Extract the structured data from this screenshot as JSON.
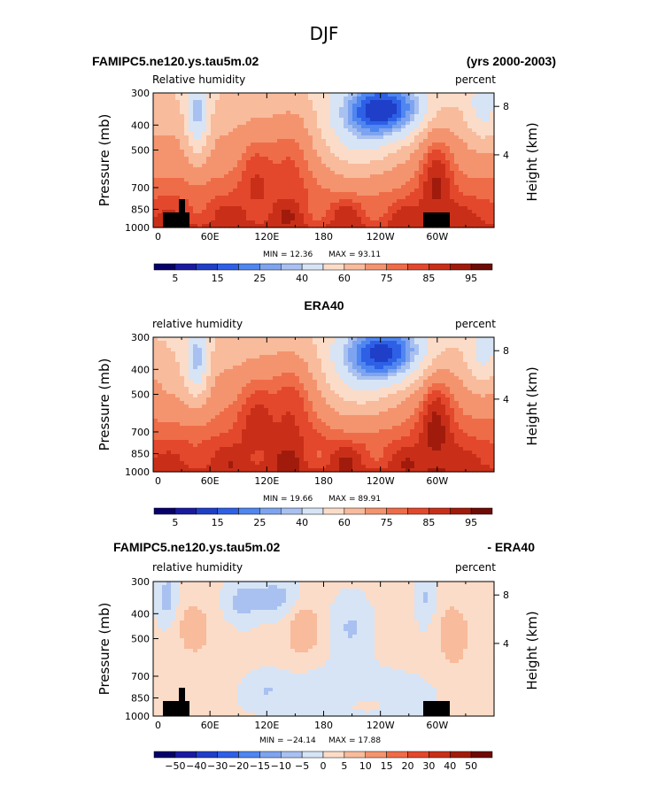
{
  "title": "DJF",
  "panels": [
    {
      "left_title": "FAMIPC5.ne120.ys.tau5m.02",
      "right_title": "(yrs 2000-2003)",
      "variable_label": "Relative humidity",
      "units_label": "percent",
      "ylabel": "Pressure (mb)",
      "ylabel_right": "Height (km)",
      "min_label": "MIN =   12.36",
      "max_label": "MAX =   93.11",
      "levels": [
        5,
        15,
        25,
        40,
        60,
        75,
        85,
        95
      ]
    },
    {
      "left_title": "",
      "center_title": "ERA40",
      "right_title": "",
      "variable_label": "relative humidity",
      "units_label": "percent",
      "ylabel": "Pressure (mb)",
      "ylabel_right": "Height (km)",
      "min_label": "MIN =   19.66",
      "max_label": "MAX =   89.91",
      "levels": [
        5,
        15,
        25,
        40,
        60,
        75,
        85,
        95
      ]
    },
    {
      "left_title": "FAMIPC5.ne120.ys.tau5m.02",
      "right_title": "- ERA40",
      "variable_label": "relative humidity",
      "units_label": "percent",
      "ylabel": "Pressure (mb)",
      "ylabel_right": "Height (km)",
      "min_label": "MIN = −24.14",
      "max_label": "MAX =   17.88",
      "levels": [
        "−50",
        "−40",
        "−30",
        "−20",
        "−15",
        "−10",
        "−5",
        "0",
        "5",
        "10",
        "15",
        "20",
        "30",
        "40",
        "50"
      ]
    }
  ],
  "chart_data": [
    {
      "type": "heatmap",
      "title": "FAMIPC5.ne120.ys.tau5m.02",
      "xlabel": "",
      "ylabel": "Pressure (mb)",
      "x_ticks": [
        "0",
        "60E",
        "120E",
        "180",
        "120W",
        "60W"
      ],
      "y_ticks": [
        "300",
        "400",
        "500",
        "700",
        "850",
        "1000"
      ],
      "y2_ticks": [
        "8",
        "4"
      ],
      "ylim": [
        1000,
        300
      ],
      "min": 12.36,
      "max": 93.11,
      "contour_levels": [
        5,
        15,
        25,
        40,
        60,
        75,
        85,
        95
      ]
    },
    {
      "type": "heatmap",
      "title": "ERA40",
      "xlabel": "",
      "ylabel": "Pressure (mb)",
      "x_ticks": [
        "0",
        "60E",
        "120E",
        "180",
        "120W",
        "60W"
      ],
      "y_ticks": [
        "300",
        "400",
        "500",
        "700",
        "850",
        "1000"
      ],
      "y2_ticks": [
        "8",
        "4"
      ],
      "ylim": [
        1000,
        300
      ],
      "min": 19.66,
      "max": 89.91,
      "contour_levels": [
        5,
        15,
        25,
        40,
        60,
        75,
        85,
        95
      ]
    },
    {
      "type": "heatmap",
      "title": "FAMIPC5.ne120.ys.tau5m.02 - ERA40",
      "xlabel": "",
      "ylabel": "Pressure (mb)",
      "x_ticks": [
        "0",
        "60E",
        "120E",
        "180",
        "120W",
        "60W"
      ],
      "y_ticks": [
        "300",
        "400",
        "500",
        "700",
        "850",
        "1000"
      ],
      "y2_ticks": [
        "8",
        "4"
      ],
      "ylim": [
        1000,
        300
      ],
      "min": -24.14,
      "max": 17.88,
      "contour_levels": [
        -50,
        -40,
        -30,
        -20,
        -15,
        -10,
        -5,
        0,
        5,
        10,
        15,
        20,
        30,
        40,
        50
      ]
    }
  ],
  "colors": {
    "rh_scale": [
      "#08006a",
      "#1a1aa0",
      "#1f3fc8",
      "#2e60e6",
      "#4f86f0",
      "#7ea4ef",
      "#a9c1f0",
      "#d6e4f6",
      "#fbdcc8",
      "#f8bb9c",
      "#f4946e",
      "#ef6c48",
      "#e3482c",
      "#c92f18",
      "#a11b0c",
      "#6e0b05"
    ],
    "diff_scale": [
      "#08006a",
      "#1a1aa0",
      "#1f3fc8",
      "#2e60e6",
      "#4f86f0",
      "#7ea4ef",
      "#a9c1f0",
      "#d6e4f6",
      "#fbdcc8",
      "#f8bb9c",
      "#f4946e",
      "#ef6c48",
      "#e3482c",
      "#c92f18",
      "#a11b0c",
      "#6e0b05"
    ]
  }
}
